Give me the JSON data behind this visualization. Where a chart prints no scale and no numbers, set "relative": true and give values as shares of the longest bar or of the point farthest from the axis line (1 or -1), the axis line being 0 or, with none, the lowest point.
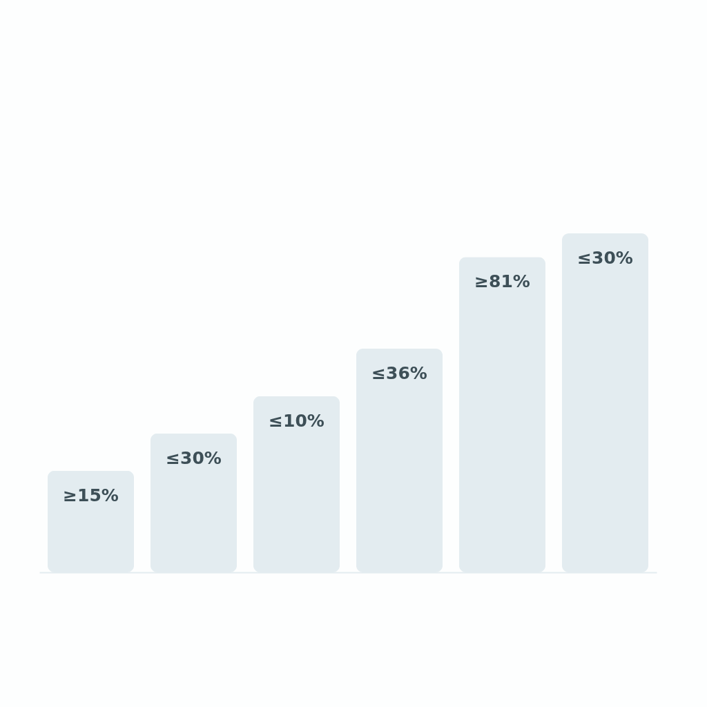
{
  "chart_data": {
    "type": "bar",
    "relative": true,
    "categories": [
      "≥15%",
      "≤30%",
      "≤10%",
      "≤36%",
      "≥81%",
      "≤30%"
    ],
    "values": [
      0.3,
      0.41,
      0.52,
      0.66,
      0.93,
      1
    ],
    "color": "#e3ecf0"
  }
}
